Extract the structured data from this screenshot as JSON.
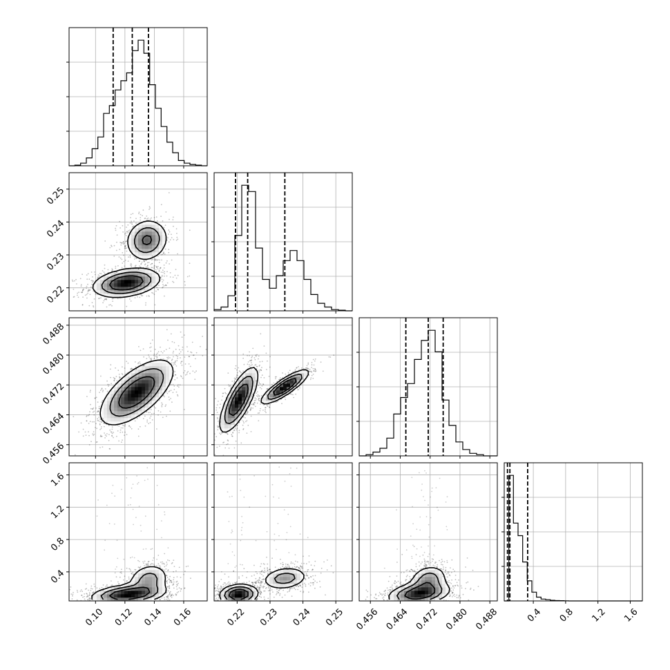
{
  "chart_data": {
    "type": "corner",
    "grid": true,
    "parameters": [
      {
        "range": [
          0.082,
          0.176
        ],
        "ticks": [
          "0.10",
          "0.12",
          "0.14",
          "0.16"
        ]
      },
      {
        "range": [
          0.213,
          0.255
        ],
        "ticks": [
          "0.22",
          "0.23",
          "0.24",
          "0.25"
        ]
      },
      {
        "range": [
          0.453,
          0.49
        ],
        "ticks": [
          "0.456",
          "0.464",
          "0.472",
          "0.480",
          "0.488"
        ]
      },
      {
        "range": [
          0.04,
          1.75
        ],
        "ticks": [
          "0.4",
          "0.8",
          "1.2",
          "1.6"
        ]
      }
    ],
    "histograms": [
      {
        "param": 0,
        "quantiles": [
          0.112,
          0.125,
          0.136
        ],
        "bins": [
          0.082,
          0.176
        ],
        "values": [
          0,
          0.5,
          2,
          6,
          13,
          22,
          40,
          46,
          58,
          65,
          71,
          88,
          96,
          86,
          62,
          44,
          30,
          18,
          10,
          4,
          2,
          1,
          0.5,
          0
        ]
      },
      {
        "param": 1,
        "quantiles": [
          0.2195,
          0.2232,
          0.2345
        ],
        "bins": [
          0.213,
          0.255
        ],
        "values": [
          1,
          3,
          12,
          60,
          100,
          95,
          50,
          25,
          18,
          28,
          40,
          48,
          40,
          25,
          13,
          6,
          3,
          1,
          0.5,
          0
        ]
      },
      {
        "param": 2,
        "quantiles": [
          0.4655,
          0.4715,
          0.4755
        ],
        "bins": [
          0.453,
          0.49
        ],
        "values": [
          0,
          1,
          3,
          6,
          14,
          33,
          46,
          57,
          76,
          91,
          99,
          82,
          44,
          24,
          11,
          5,
          2,
          1,
          0,
          0
        ]
      },
      {
        "param": 3,
        "quantiles": [
          0.08,
          0.11,
          0.33
        ],
        "bins": [
          0.04,
          1.75
        ],
        "values": [
          0,
          100,
          62,
          52,
          31,
          16,
          7,
          3,
          1.5,
          1,
          0.5,
          0.3,
          0.2,
          0.1,
          0,
          0,
          0,
          0,
          0,
          0,
          0,
          0,
          0,
          0,
          0,
          0,
          0,
          0,
          0,
          0
        ]
      }
    ],
    "pairs": [
      {
        "x": 0,
        "y": 1,
        "modes": [
          {
            "cx": 0.121,
            "cy": 0.2215,
            "sx": 0.011,
            "sy": 0.0021,
            "rho": 0.3,
            "w": 0.62
          },
          {
            "cx": 0.135,
            "cy": 0.2345,
            "sx": 0.007,
            "sy": 0.0031,
            "rho": 0.1,
            "w": 0.38
          }
        ]
      },
      {
        "x": 0,
        "y": 2,
        "modes": [
          {
            "cx": 0.128,
            "cy": 0.47,
            "sx": 0.012,
            "sy": 0.0042,
            "rho": 0.65,
            "w": 1.0
          }
        ]
      },
      {
        "x": 1,
        "y": 2,
        "modes": [
          {
            "cx": 0.2205,
            "cy": 0.468,
            "sx": 0.0028,
            "sy": 0.0042,
            "rho": 0.75,
            "w": 0.6
          },
          {
            "cx": 0.2345,
            "cy": 0.4715,
            "sx": 0.0035,
            "sy": 0.0022,
            "rho": 0.85,
            "w": 0.4
          }
        ]
      },
      {
        "x": 0,
        "y": 3,
        "modes": [
          {
            "cx": 0.122,
            "cy": 0.12,
            "sx": 0.012,
            "sy": 0.06,
            "rho": 0.3,
            "w": 0.7
          },
          {
            "cx": 0.136,
            "cy": 0.3,
            "sx": 0.007,
            "sy": 0.1,
            "rho": 0.2,
            "w": 0.3
          }
        ]
      },
      {
        "x": 1,
        "y": 3,
        "modes": [
          {
            "cx": 0.2205,
            "cy": 0.12,
            "sx": 0.0028,
            "sy": 0.06,
            "rho": 0.1,
            "w": 0.6
          },
          {
            "cx": 0.2345,
            "cy": 0.32,
            "sx": 0.0035,
            "sy": 0.07,
            "rho": 0.2,
            "w": 0.4
          }
        ]
      },
      {
        "x": 2,
        "y": 3,
        "modes": [
          {
            "cx": 0.469,
            "cy": 0.13,
            "sx": 0.004,
            "sy": 0.07,
            "rho": 0.3,
            "w": 0.7
          },
          {
            "cx": 0.4715,
            "cy": 0.3,
            "sx": 0.0025,
            "sy": 0.09,
            "rho": 0.2,
            "w": 0.3
          }
        ]
      }
    ]
  }
}
